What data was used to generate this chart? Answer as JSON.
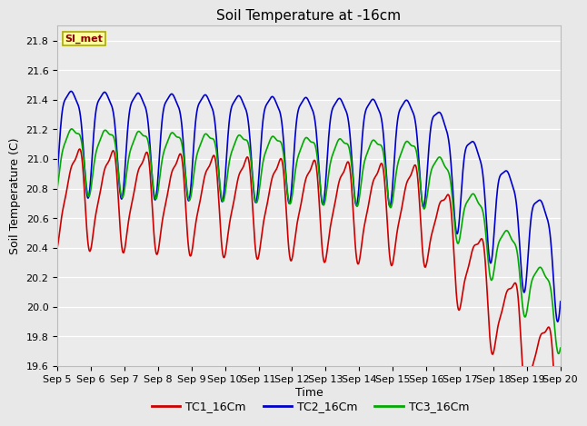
{
  "title": "Soil Temperature at -16cm",
  "xlabel": "Time",
  "ylabel": "Soil Temperature (C)",
  "ylim": [
    19.6,
    21.9
  ],
  "xlim": [
    0,
    360
  ],
  "x_tick_labels": [
    "Sep 5",
    "Sep 6",
    "Sep 7",
    "Sep 8",
    "Sep 9",
    "Sep 10",
    "Sep 11",
    "Sep 12",
    "Sep 13",
    "Sep 14",
    "Sep 15",
    "Sep 16",
    "Sep 17",
    "Sep 18",
    "Sep 19",
    "Sep 20"
  ],
  "x_tick_positions": [
    0,
    24,
    48,
    72,
    96,
    120,
    144,
    168,
    192,
    216,
    240,
    264,
    288,
    312,
    336,
    360
  ],
  "legend_labels": [
    "TC1_16Cm",
    "TC2_16Cm",
    "TC3_16Cm"
  ],
  "line_colors": [
    "#cc0000",
    "#0000cc",
    "#00aa00"
  ],
  "line_width": 1.2,
  "bg_color": "#e8e8e8",
  "plot_bg_color": "#ebebeb",
  "annotation_text": "SI_met",
  "annotation_color": "#8b0000",
  "annotation_bg": "#ffff99",
  "grid_color": "#ffffff",
  "title_fontsize": 11,
  "axis_fontsize": 9,
  "tick_fontsize": 8,
  "legend_fontsize": 9
}
